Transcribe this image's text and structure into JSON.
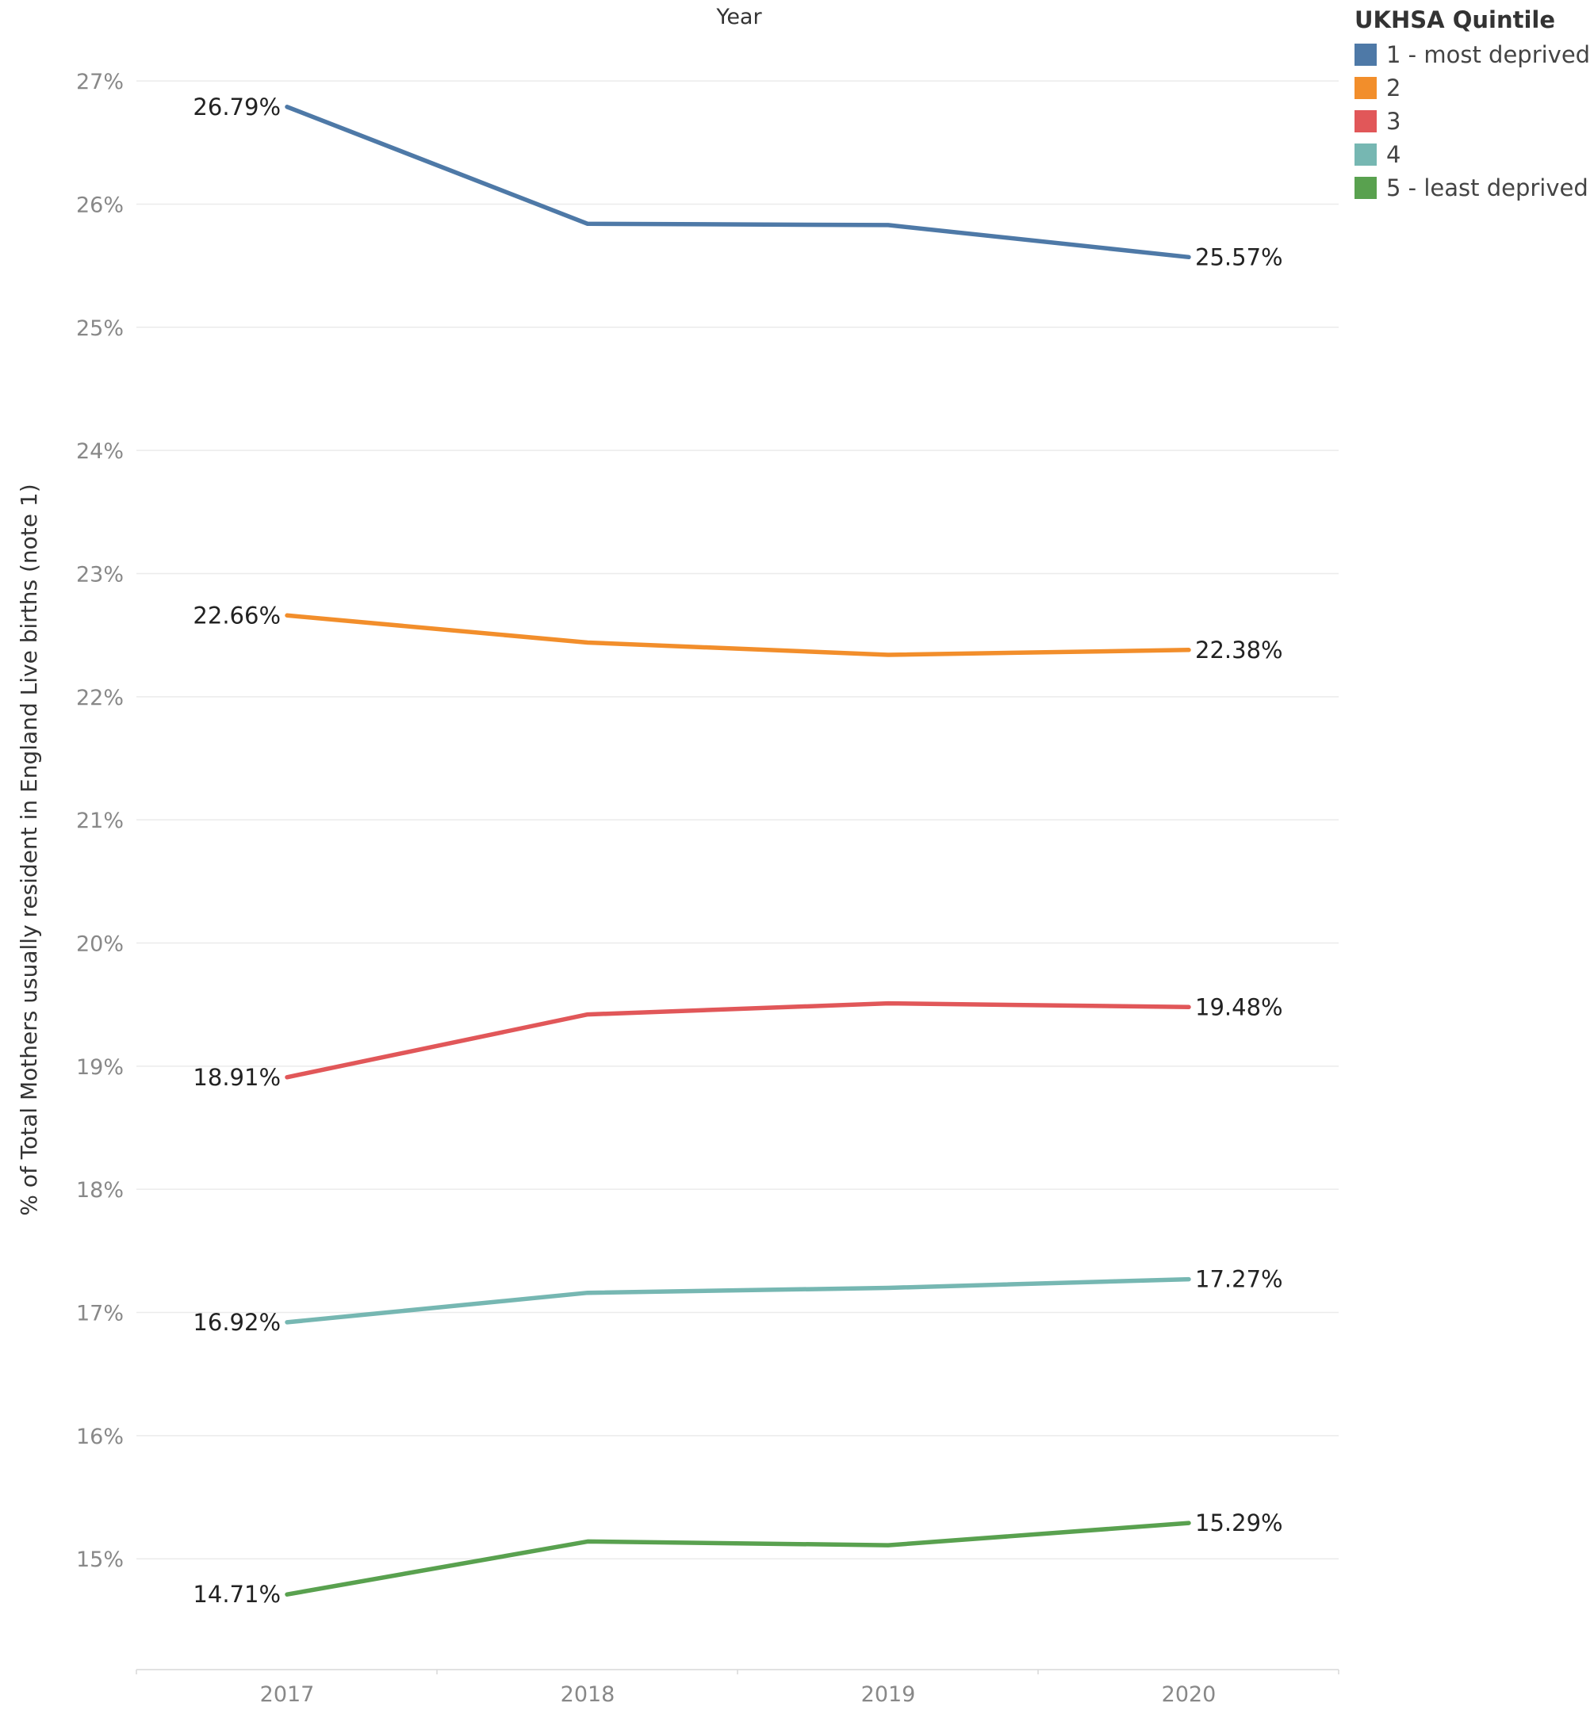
{
  "chart_data": {
    "type": "line",
    "xlabel": "Year",
    "ylabel": "% of Total Mothers usually resident in England  Live births (note 1)",
    "x": [
      "2017",
      "2018",
      "2019",
      "2020"
    ],
    "ylim": [
      14.1,
      27.4
    ],
    "yticks": [
      15,
      16,
      17,
      18,
      19,
      20,
      21,
      22,
      23,
      24,
      25,
      26,
      27
    ],
    "ytick_labels": [
      "15%",
      "16%",
      "17%",
      "18%",
      "19%",
      "20%",
      "21%",
      "22%",
      "23%",
      "24%",
      "25%",
      "26%",
      "27%"
    ],
    "grid": true,
    "legend_title": "UKHSA Quintile",
    "legend_position": "top-right",
    "series": [
      {
        "name": "1 - most deprived",
        "color": "#4e79a7",
        "values": [
          26.79,
          25.84,
          25.83,
          25.57
        ],
        "start_label": "26.79%",
        "end_label": "25.57%"
      },
      {
        "name": "2",
        "color": "#f28e2b",
        "values": [
          22.66,
          22.44,
          22.34,
          22.38
        ],
        "start_label": "22.66%",
        "end_label": "22.38%"
      },
      {
        "name": "3",
        "color": "#e15759",
        "values": [
          18.91,
          19.42,
          19.51,
          19.48
        ],
        "start_label": "18.91%",
        "end_label": "19.48%"
      },
      {
        "name": "4",
        "color": "#76b7b2",
        "values": [
          16.92,
          17.16,
          17.2,
          17.27
        ],
        "start_label": "16.92%",
        "end_label": "17.27%"
      },
      {
        "name": "5 - least deprived",
        "color": "#59a14f",
        "values": [
          14.71,
          15.14,
          15.11,
          15.29
        ],
        "start_label": "14.71%",
        "end_label": "15.29%"
      }
    ]
  }
}
